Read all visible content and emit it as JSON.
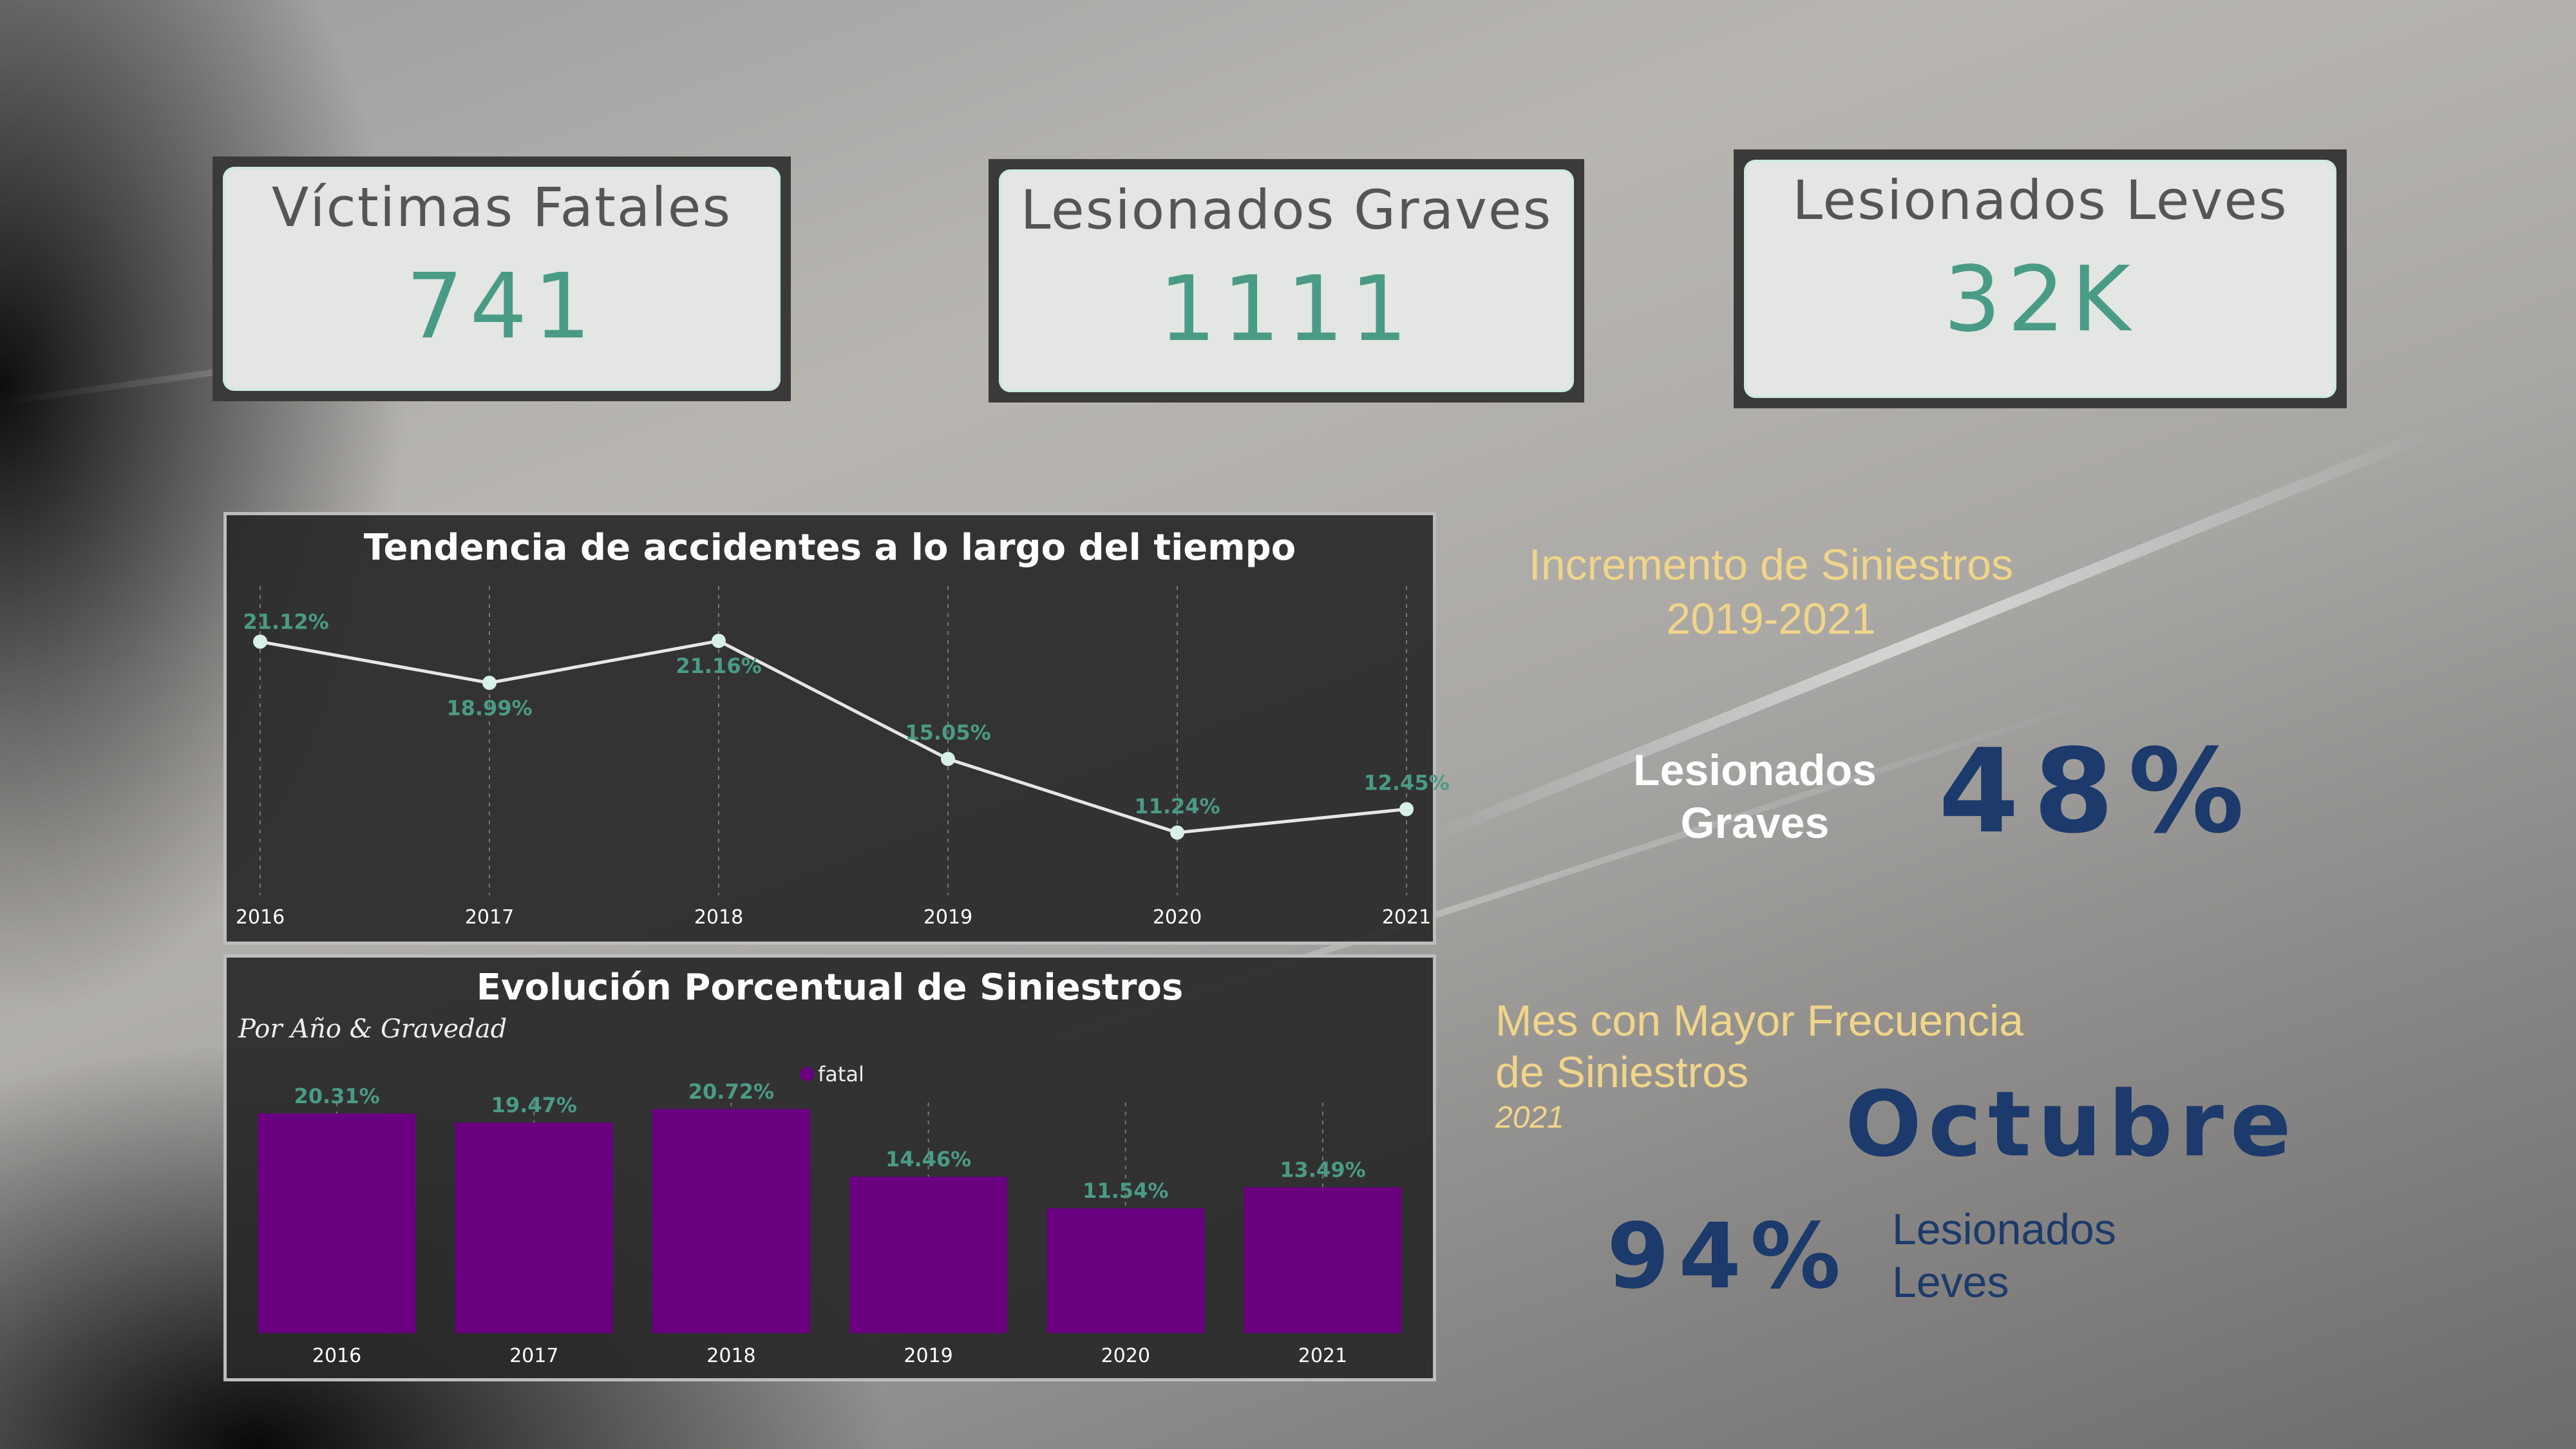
{
  "kpis": [
    {
      "title": "Víctimas Fatales",
      "value": "741"
    },
    {
      "title": "Lesionados Graves",
      "value": "1111"
    },
    {
      "title": "Lesionados Leves",
      "value": "32K"
    }
  ],
  "line_panel": {
    "title": "Tendencia de accidentes a lo largo del tiempo"
  },
  "bar_panel": {
    "title": "Evolución Porcentual de Siniestros",
    "subtitle": "Por Año & Gravedad",
    "legend": "fatal"
  },
  "increment": {
    "heading_line1": "Incremento de Siniestros",
    "heading_line2": "2019-2021",
    "label_line1": "Lesionados",
    "label_line2": "Graves",
    "value": "48%"
  },
  "month": {
    "heading_line1": "Mes con Mayor Frecuencia",
    "heading_line2": "de Siniestros",
    "year": "2021",
    "value": "Octubre",
    "pct": "94%",
    "label_line1": "Lesionados",
    "label_line2": "Leves"
  },
  "colors": {
    "accent": "#4a9b86",
    "bar": "#6a0080",
    "navy": "#1c3a6b",
    "gold": "#f0d58a",
    "line": "#e6e6e6"
  },
  "chart_data": [
    {
      "type": "line",
      "title": "Tendencia de accidentes a lo largo del tiempo",
      "x": [
        "2016",
        "2017",
        "2018",
        "2019",
        "2020",
        "2021"
      ],
      "values": [
        21.12,
        18.99,
        21.16,
        15.05,
        11.24,
        12.45
      ],
      "labels": [
        "21.12%",
        "18.99%",
        "21.16%",
        "15.05%",
        "11.24%",
        "12.45%"
      ],
      "ylim": [
        9,
        23
      ]
    },
    {
      "type": "bar",
      "title": "Evolución Porcentual de Siniestros",
      "subtitle": "Por Año & Gravedad",
      "categories": [
        "2016",
        "2017",
        "2018",
        "2019",
        "2020",
        "2021"
      ],
      "series": [
        {
          "name": "fatal",
          "values": [
            20.31,
            19.47,
            20.72,
            14.46,
            11.54,
            13.49
          ]
        }
      ],
      "labels": [
        "20.31%",
        "19.47%",
        "20.72%",
        "14.46%",
        "11.54%",
        "13.49%"
      ],
      "ylim": [
        0,
        24
      ]
    }
  ]
}
